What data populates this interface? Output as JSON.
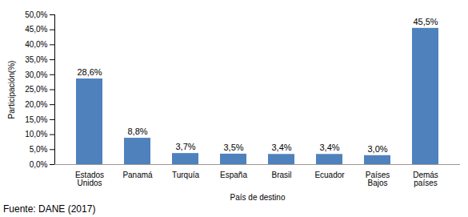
{
  "chart_data": {
    "type": "bar",
    "categories": [
      "Estados Unidos",
      "Panamá",
      "Turquía",
      "España",
      "Brasil",
      "Ecuador",
      "Países Bajos",
      "Demás países"
    ],
    "values": [
      28.6,
      8.8,
      3.7,
      3.5,
      3.4,
      3.4,
      3.0,
      45.5
    ],
    "value_labels": [
      "28,6%",
      "8,8%",
      "3,7%",
      "3,5%",
      "3,4%",
      "3,4%",
      "3,0%",
      "45,5%"
    ],
    "data_labels": true,
    "color": "#4f81bd",
    "xlabel": "País de destino",
    "ylabel": "Participación(%)",
    "ylim": [
      0,
      50
    ],
    "yticks": [
      {
        "value": 0,
        "label": "0,0%"
      },
      {
        "value": 5,
        "label": "5,0%"
      },
      {
        "value": 10,
        "label": "10,0%"
      },
      {
        "value": 15,
        "label": "15,0%"
      },
      {
        "value": 20,
        "label": "20,0%"
      },
      {
        "value": 25,
        "label": "25,0%"
      },
      {
        "value": 30,
        "label": "30,0%"
      },
      {
        "value": 35,
        "label": "35,0%"
      },
      {
        "value": 40,
        "label": "40,0%"
      },
      {
        "value": 45,
        "label": "45,0%"
      },
      {
        "value": 50,
        "label": "50,0%"
      }
    ],
    "grid": false,
    "caption": "Fuente: DANE (2017)"
  }
}
